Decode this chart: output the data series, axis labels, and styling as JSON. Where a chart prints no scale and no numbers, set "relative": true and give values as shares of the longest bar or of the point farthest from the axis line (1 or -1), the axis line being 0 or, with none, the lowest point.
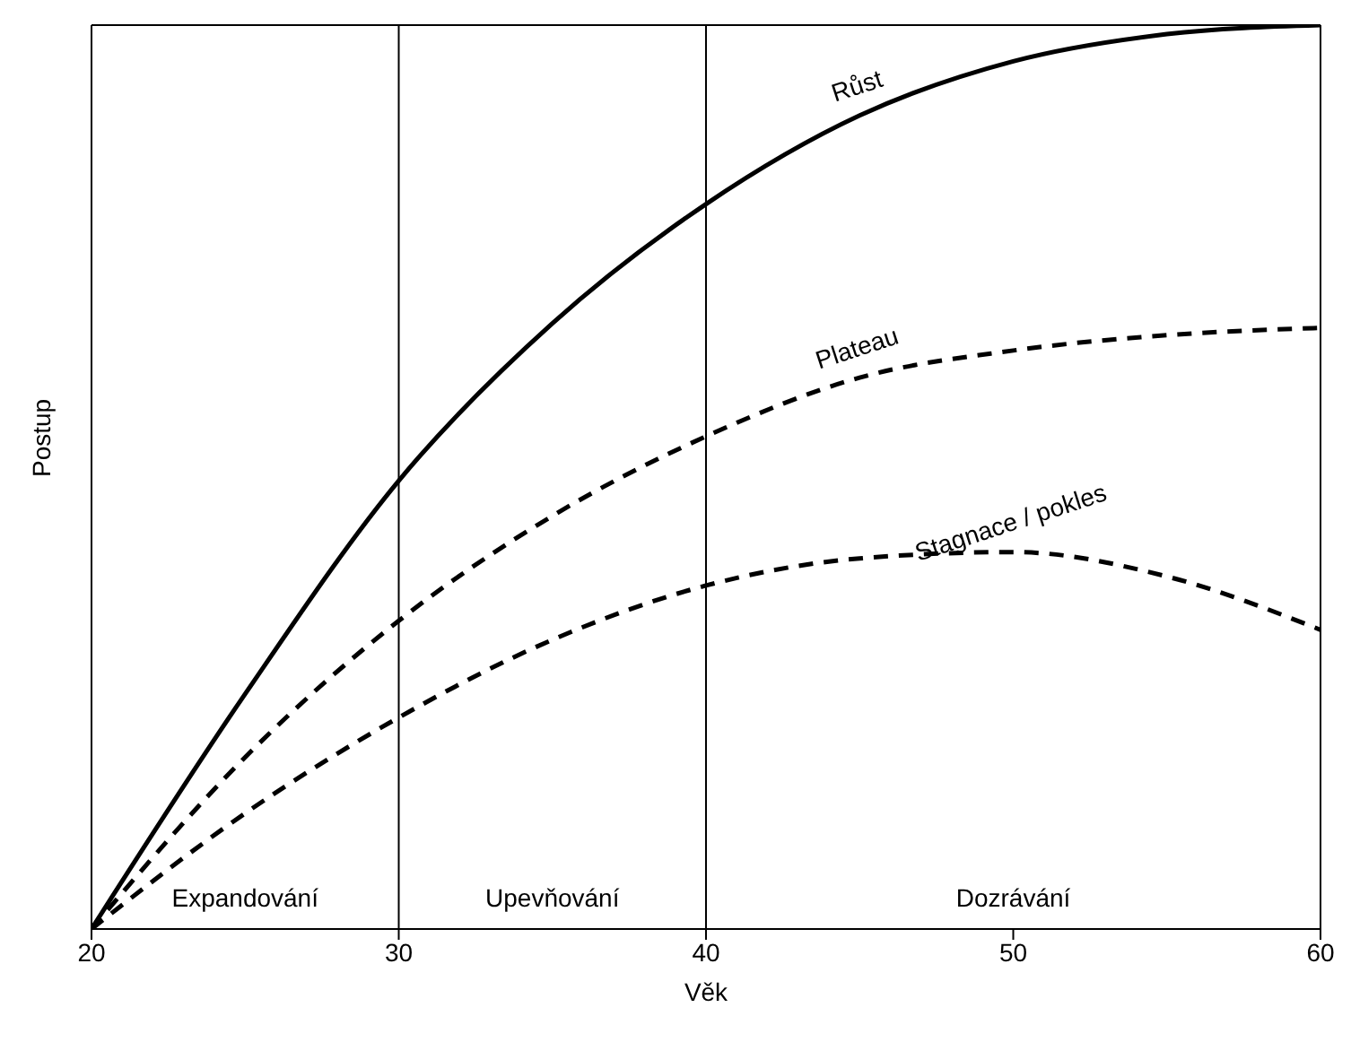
{
  "chart_data": {
    "type": "line",
    "relative": true,
    "xlabel": "Věk",
    "ylabel": "Postup",
    "x": [
      20,
      25,
      30,
      35,
      40,
      45,
      50,
      55,
      60
    ],
    "xlim": [
      20,
      60
    ],
    "xticks": [
      20,
      30,
      40,
      50,
      60
    ],
    "grid": false,
    "legend": false,
    "marker": "none",
    "series": [
      {
        "name": "Růst",
        "color": "#000000",
        "line_style": "solid",
        "values": [
          0,
          0.26,
          0.496,
          0.67,
          0.802,
          0.9,
          0.96,
          0.99,
          1
        ]
      },
      {
        "name": "Plateau",
        "color": "#000000",
        "line_style": "dashed",
        "values": [
          0,
          0.19,
          0.341,
          0.457,
          0.545,
          0.61,
          0.64,
          0.657,
          0.665
        ]
      },
      {
        "name": "Stagnace / pokles",
        "color": "#000000",
        "line_style": "dashed",
        "values": [
          0,
          0.128,
          0.234,
          0.32,
          0.38,
          0.41,
          0.417,
          0.39,
          0.331
        ]
      }
    ],
    "ref_lines": [
      {
        "axis": "x",
        "value": 30,
        "color": "#000000"
      },
      {
        "axis": "x",
        "value": 40,
        "color": "#000000"
      }
    ],
    "annotations": [
      "Expandování",
      "Upevňování",
      "Dozrávání"
    ]
  }
}
